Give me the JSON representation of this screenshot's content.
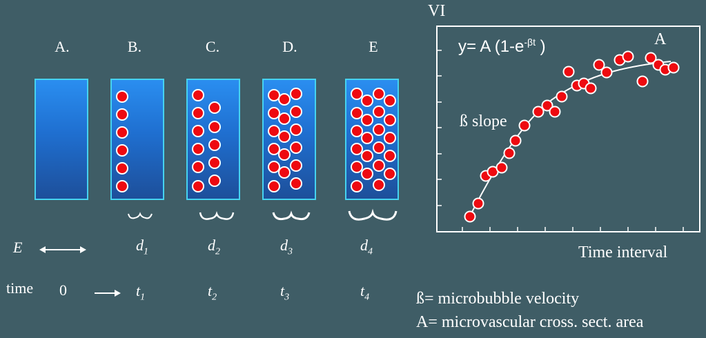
{
  "tubes": [
    {
      "label": "A.",
      "d_label": "",
      "t_label": ""
    },
    {
      "label": "B.",
      "d_label": "d",
      "d_sub": "1",
      "t_label": "t",
      "t_sub": "1"
    },
    {
      "label": "C.",
      "d_label": "d",
      "d_sub": "2",
      "t_label": "t",
      "t_sub": "2"
    },
    {
      "label": "D.",
      "d_label": "d",
      "d_sub": "3",
      "t_label": "t",
      "t_sub": "3"
    },
    {
      "label": "E",
      "d_label": "d",
      "d_sub": "4",
      "t_label": "t",
      "t_sub": "4"
    }
  ],
  "row_labels": {
    "e": "E",
    "time": "time",
    "zero": "0"
  },
  "graph": {
    "y_axis_label": "VI",
    "x_axis_label": "Time interval",
    "plateau_label": "A",
    "slope_label": "ß slope",
    "equation": {
      "prefix": "y= A (1-e",
      "exponent": "-βt",
      "suffix": " )"
    }
  },
  "definitions": {
    "beta": "ß= microbubble velocity",
    "a": "A= microvascular cross. sect. area"
  },
  "colors": {
    "background": "#3f5d66",
    "tube_border": "#46d3f0",
    "bubble": "#ee0a10"
  }
}
